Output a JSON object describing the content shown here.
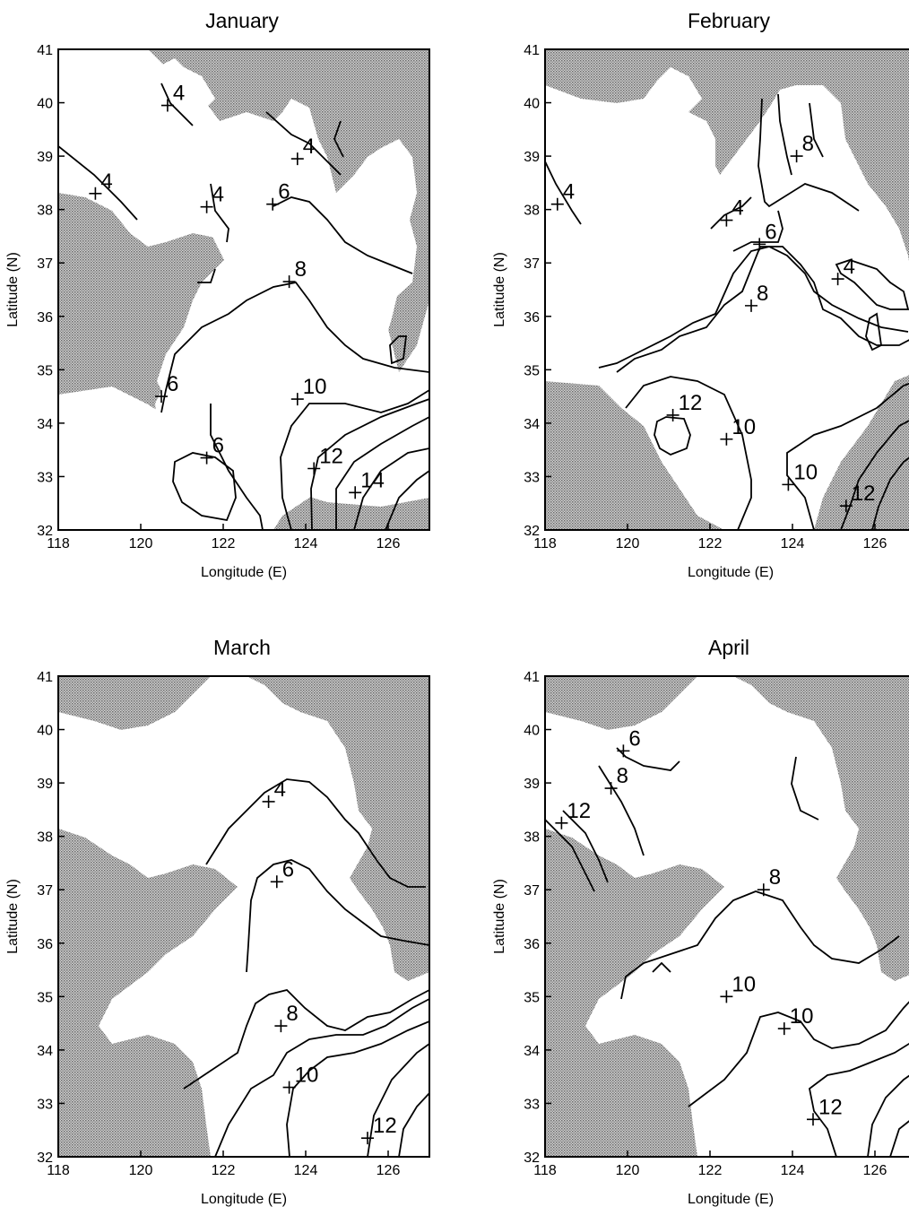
{
  "panels": [
    {
      "title": "January",
      "xlabel": "Longitude (E)",
      "ylabel": "Latitude (N)",
      "xticks": [
        "118",
        "120",
        "122",
        "124",
        "126"
      ],
      "yticks": [
        "32",
        "33",
        "34",
        "35",
        "36",
        "37",
        "38",
        "39",
        "40",
        "41"
      ],
      "contour_labels": [
        {
          "text": "4",
          "lon": 120.65,
          "lat": 39.95
        },
        {
          "text": "4",
          "lon": 123.8,
          "lat": 38.95
        },
        {
          "text": "4",
          "lon": 118.9,
          "lat": 38.3
        },
        {
          "text": "4",
          "lon": 121.6,
          "lat": 38.05
        },
        {
          "text": "6",
          "lon": 123.2,
          "lat": 38.1
        },
        {
          "text": "8",
          "lon": 123.6,
          "lat": 36.65
        },
        {
          "text": "6",
          "lon": 120.5,
          "lat": 34.5
        },
        {
          "text": "10",
          "lon": 123.8,
          "lat": 34.45
        },
        {
          "text": "12",
          "lon": 124.2,
          "lat": 33.15
        },
        {
          "text": "6",
          "lon": 121.6,
          "lat": 33.35
        },
        {
          "text": "14",
          "lon": 125.2,
          "lat": 32.7
        }
      ]
    },
    {
      "title": "February",
      "xlabel": "Longitude (E)",
      "ylabel": "Latitude (N)",
      "xticks": [
        "118",
        "120",
        "122",
        "124",
        "126"
      ],
      "yticks": [
        "32",
        "33",
        "34",
        "35",
        "36",
        "37",
        "38",
        "39",
        "40",
        "41"
      ],
      "contour_labels": [
        {
          "text": "8",
          "lon": 124.1,
          "lat": 39.0
        },
        {
          "text": "4",
          "lon": 118.3,
          "lat": 38.1
        },
        {
          "text": "4",
          "lon": 122.4,
          "lat": 37.8
        },
        {
          "text": "6",
          "lon": 123.2,
          "lat": 37.35
        },
        {
          "text": "4",
          "lon": 125.1,
          "lat": 36.7
        },
        {
          "text": "8",
          "lon": 123.0,
          "lat": 36.2
        },
        {
          "text": "12",
          "lon": 121.1,
          "lat": 34.15
        },
        {
          "text": "10",
          "lon": 122.4,
          "lat": 33.7
        },
        {
          "text": "10",
          "lon": 123.9,
          "lat": 32.85
        },
        {
          "text": "12",
          "lon": 125.3,
          "lat": 32.45
        }
      ]
    },
    {
      "title": "March",
      "xlabel": "Longitude (E)",
      "ylabel": "Latitude (N)",
      "xticks": [
        "118",
        "120",
        "122",
        "124",
        "126"
      ],
      "yticks": [
        "32",
        "33",
        "34",
        "35",
        "36",
        "37",
        "38",
        "39",
        "40",
        "41"
      ],
      "contour_labels": [
        {
          "text": "4",
          "lon": 123.1,
          "lat": 38.65
        },
        {
          "text": "6",
          "lon": 123.3,
          "lat": 37.15
        },
        {
          "text": "8",
          "lon": 123.4,
          "lat": 34.45
        },
        {
          "text": "10",
          "lon": 123.6,
          "lat": 33.3
        },
        {
          "text": "12",
          "lon": 125.5,
          "lat": 32.35
        }
      ]
    },
    {
      "title": "April",
      "xlabel": "Longitude (E)",
      "ylabel": "Latitude (N)",
      "xticks": [
        "118",
        "120",
        "122",
        "124",
        "126"
      ],
      "yticks": [
        "32",
        "33",
        "34",
        "35",
        "36",
        "37",
        "38",
        "39",
        "40",
        "41"
      ],
      "contour_labels": [
        {
          "text": "6",
          "lon": 119.9,
          "lat": 39.6
        },
        {
          "text": "8",
          "lon": 119.6,
          "lat": 38.9
        },
        {
          "text": "12",
          "lon": 118.4,
          "lat": 38.25
        },
        {
          "text": "8",
          "lon": 123.3,
          "lat": 37.0
        },
        {
          "text": "10",
          "lon": 122.4,
          "lat": 35.0
        },
        {
          "text": "10",
          "lon": 123.8,
          "lat": 34.4
        },
        {
          "text": "12",
          "lon": 124.5,
          "lat": 32.7
        }
      ]
    }
  ],
  "map_extent": {
    "lon": [
      118,
      127
    ],
    "lat": [
      32,
      41
    ]
  },
  "colors": {
    "land": "#9a9a9a",
    "sea": "#ffffff",
    "contour": "#000000"
  }
}
